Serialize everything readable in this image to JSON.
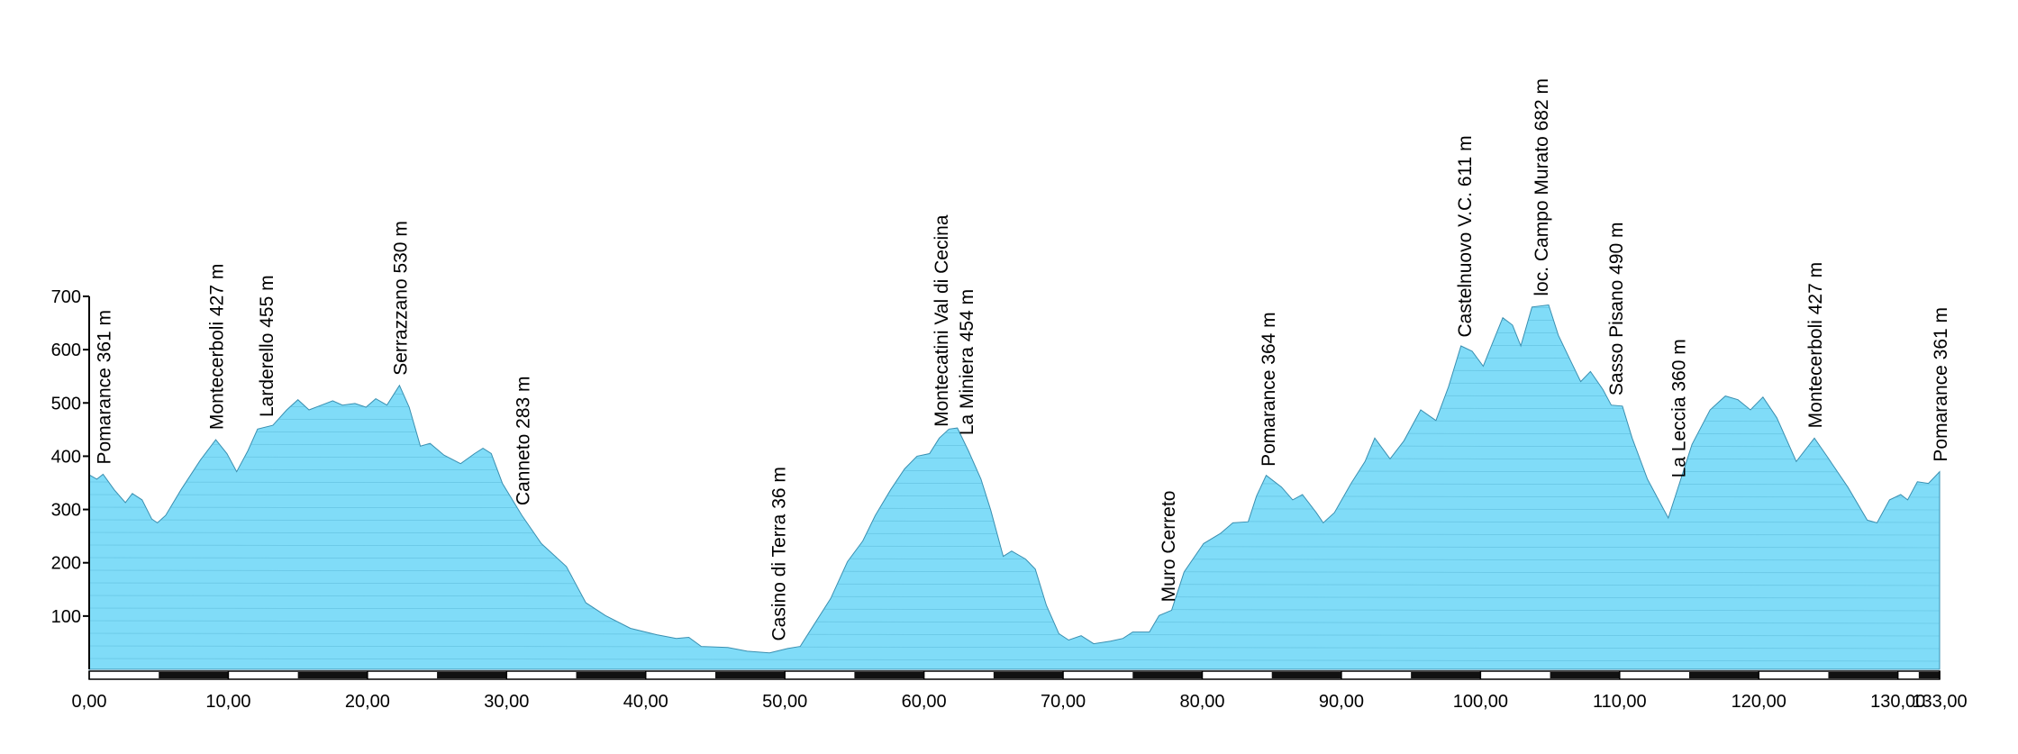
{
  "chart_data": {
    "type": "area",
    "color": "#80dcf8",
    "line_color": "#3a8fb0",
    "x": [
      0,
      0.55,
      1,
      1.8,
      2.6,
      3.1,
      3.8,
      4.5,
      4.9,
      5.5,
      6.6,
      8,
      9.1,
      9.9,
      10.6,
      11.4,
      12.1,
      13.2,
      14.2,
      15,
      15.8,
      16.7,
      17.5,
      18.2,
      19.1,
      19.9,
      20.6,
      21.4,
      22.3,
      23,
      23.8,
      24.5,
      25.5,
      26.7,
      27.7,
      28.3,
      28.9,
      29.7,
      31.1,
      32.5,
      34.3,
      35.7,
      37.1,
      38.9,
      40.8,
      42.2,
      43.1,
      44,
      45.9,
      47.3,
      48.9,
      50.2,
      51.1,
      52,
      53.3,
      54.5,
      55.6,
      56.5,
      57.6,
      58.6,
      59.5,
      60.4,
      61.1,
      61.8,
      62.4,
      63.2,
      64.1,
      64.8,
      65.7,
      66.3,
      67.3,
      68,
      68.8,
      69.7,
      70.4,
      71.3,
      72.2,
      73.4,
      74.3,
      75,
      76.2,
      76.9,
      77.8,
      78.7,
      80.1,
      81.3,
      82.2,
      83.3,
      83.9,
      84.6,
      85.7,
      86.5,
      87.2,
      88.2,
      88.7,
      89.5,
      90.7,
      91.7,
      92.4,
      93.5,
      94.5,
      95.7,
      96.8,
      97.7,
      98.6,
      99.4,
      100.2,
      100.7,
      101.6,
      102.3,
      102.9,
      103.7,
      104.9,
      105.6,
      106.5,
      107.2,
      107.9,
      108.8,
      109.4,
      110.2,
      110.9,
      112,
      112.9,
      113.5,
      114.3,
      115.2,
      116.5,
      117.6,
      118.5,
      119.4,
      120.3,
      121.3,
      122.7,
      124,
      124.9,
      126.4,
      127.8,
      128.5,
      129.4,
      130.2,
      130.7,
      131.4,
      132.2,
      133
    ],
    "values": [
      365,
      357,
      366,
      337,
      313,
      330,
      318,
      282,
      275,
      289,
      337,
      393,
      431,
      405,
      371,
      410,
      451,
      458,
      487,
      506,
      487,
      496,
      504,
      496,
      499,
      492,
      508,
      496,
      533,
      492,
      419,
      424,
      402,
      386,
      405,
      415,
      405,
      349,
      289,
      236,
      193,
      125,
      101,
      77,
      65,
      58,
      60,
      43,
      41,
      34,
      31,
      39,
      43,
      80,
      133,
      202,
      241,
      289,
      337,
      376,
      400,
      405,
      434,
      451,
      453,
      410,
      357,
      299,
      212,
      222,
      207,
      188,
      120,
      67,
      55,
      63,
      48,
      53,
      58,
      70,
      70,
      101,
      111,
      183,
      236,
      255,
      275,
      277,
      325,
      364,
      342,
      318,
      328,
      294,
      275,
      294,
      349,
      390,
      434,
      395,
      429,
      487,
      467,
      530,
      607,
      597,
      569,
      602,
      660,
      646,
      607,
      680,
      684,
      627,
      578,
      540,
      559,
      525,
      496,
      494,
      434,
      357,
      313,
      284,
      349,
      422,
      487,
      513,
      506,
      487,
      511,
      472,
      390,
      434,
      400,
      342,
      280,
      275,
      318,
      328,
      318,
      352,
      349,
      371
    ],
    "xlim": [
      0,
      133
    ],
    "ylim": [
      0,
      700
    ],
    "xticks": [
      {
        "value": 0,
        "label": "0,00"
      },
      {
        "value": 10,
        "label": "10,00"
      },
      {
        "value": 20,
        "label": "20,00"
      },
      {
        "value": 30,
        "label": "30,00"
      },
      {
        "value": 40,
        "label": "40,00"
      },
      {
        "value": 50,
        "label": "50,00"
      },
      {
        "value": 60,
        "label": "60,00"
      },
      {
        "value": 70,
        "label": "70,00"
      },
      {
        "value": 80,
        "label": "80,00"
      },
      {
        "value": 90,
        "label": "90,00"
      },
      {
        "value": 100,
        "label": "100,00"
      },
      {
        "value": 110,
        "label": "110,00"
      },
      {
        "value": 120,
        "label": "120,00"
      },
      {
        "value": 130,
        "label": "130,00"
      },
      {
        "value": 133,
        "label": "133,00"
      }
    ],
    "yticks": [
      100,
      200,
      300,
      400,
      500,
      600,
      700
    ],
    "annotations": [
      {
        "text": "Pomarance 361 m",
        "x": 1.0
      },
      {
        "text": "Montecerboli 427 m",
        "x": 9.1
      },
      {
        "text": "Larderello 455 m",
        "x": 12.7
      },
      {
        "text": "Serrazzano 530 m",
        "x": 22.3
      },
      {
        "text": "Canneto 283 m",
        "x": 31.1
      },
      {
        "text": "Casino di Terra 36 m",
        "x": 49.5
      },
      {
        "text": "Montecatini Val di Cecina",
        "x": 61.2
      },
      {
        "text": "La Miniera 454 m",
        "x": 63.0
      },
      {
        "text": "Muro Cerreto",
        "x": 77.5
      },
      {
        "text": "Pomarance 364 m",
        "x": 84.7
      },
      {
        "text": "Castelnuovo V.C. 611 m",
        "x": 98.8
      },
      {
        "text": "loc. Campo Murato 682 m",
        "x": 104.3
      },
      {
        "text": "Sasso Pisano 490 m",
        "x": 109.7
      },
      {
        "text": "La Leccia 360 m",
        "x": 114.2
      },
      {
        "text": "Montecerboli 427 m",
        "x": 124.0
      },
      {
        "text": "Pomarance 361 m",
        "x": 133.0
      }
    ]
  }
}
